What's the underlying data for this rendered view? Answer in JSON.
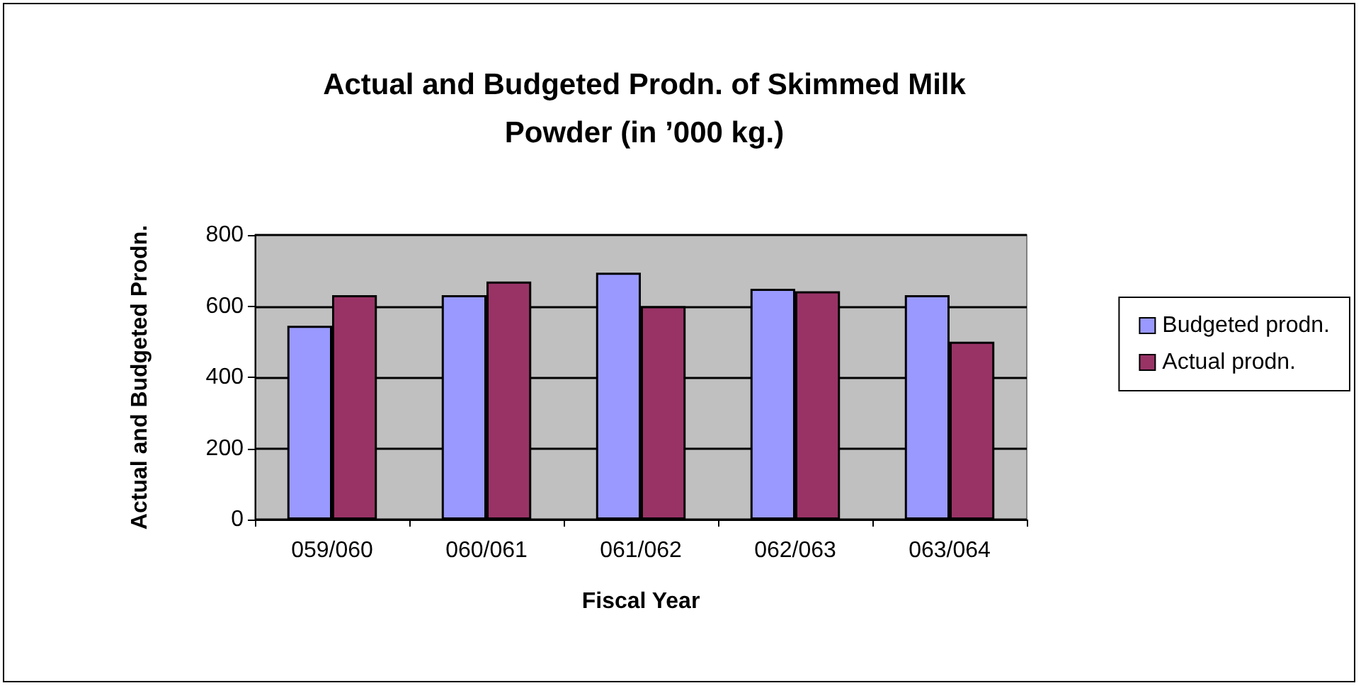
{
  "chart_data": {
    "type": "bar",
    "title": "Actual and Budgeted Prodn. of Skimmed Milk Powder (in ’000 kg.)",
    "xlabel": "Fiscal Year",
    "ylabel": "Actual and Budgeted Prodn.",
    "categories": [
      "059/060",
      "060/061",
      "061/062",
      "062/063",
      "063/064"
    ],
    "series": [
      {
        "name": "Budgeted prodn.",
        "color": "#9999ff",
        "values": [
          545,
          631,
          694,
          649,
          631
        ]
      },
      {
        "name": "Actual prodn.",
        "color": "#993366",
        "values": [
          631,
          669,
          600,
          642,
          500
        ]
      }
    ],
    "ylim": [
      0,
      800
    ],
    "yticks": [
      0,
      200,
      400,
      600,
      800
    ],
    "grid": "y",
    "legend": "right"
  }
}
